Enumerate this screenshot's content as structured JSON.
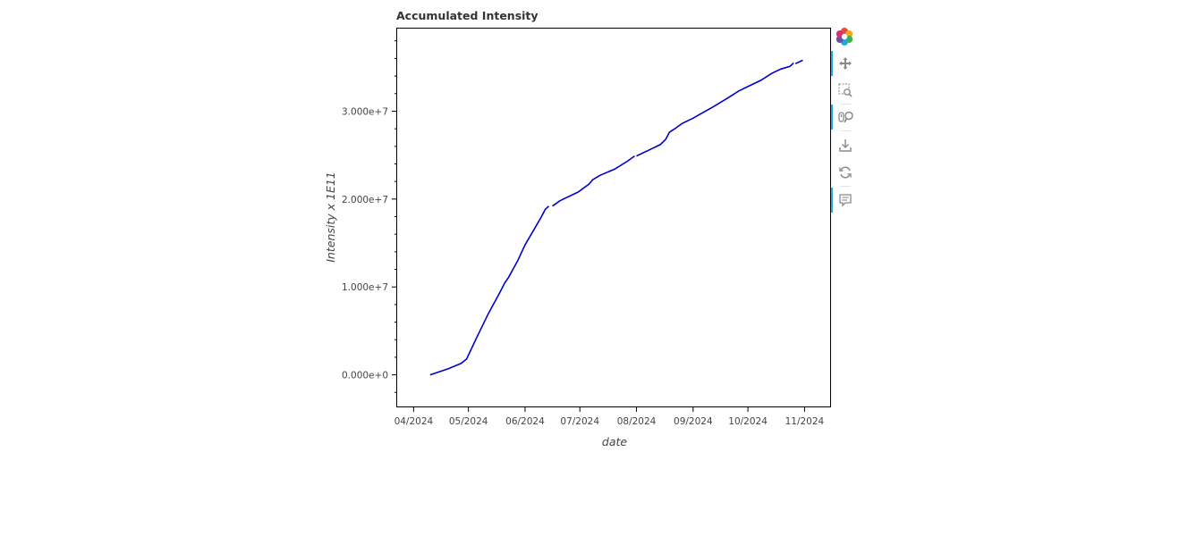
{
  "chart_data": {
    "type": "line",
    "title": "Accumulated Intensity",
    "xlabel": "date",
    "ylabel": "Intensity x 1E11",
    "x_ticks": [
      "04/2024",
      "05/2024",
      "06/2024",
      "07/2024",
      "08/2024",
      "09/2024",
      "10/2024",
      "11/2024"
    ],
    "x_tick_dates": [
      "2024-04-01",
      "2024-05-01",
      "2024-06-01",
      "2024-07-01",
      "2024-08-01",
      "2024-09-01",
      "2024-10-01",
      "2024-11-01"
    ],
    "xlim": [
      "2024-03-23",
      "2024-11-15"
    ],
    "y_ticks": [
      0,
      10000000,
      20000000,
      30000000
    ],
    "y_tick_labels": [
      "0.000e+0",
      "1.000e+7",
      "2.000e+7",
      "3.000e+7"
    ],
    "ylim": [
      -3600000,
      39400000
    ],
    "grid": false,
    "series": [
      {
        "color": "#0000cd",
        "segments": [
          [
            [
              "2024-04-10",
              0
            ],
            [
              "2024-04-20",
              700000
            ],
            [
              "2024-04-27",
              1300000
            ],
            [
              "2024-04-30",
              1800000
            ],
            [
              "2024-05-05",
              4000000
            ],
            [
              "2024-05-12",
              7000000
            ],
            [
              "2024-05-18",
              9300000
            ],
            [
              "2024-05-21",
              10500000
            ],
            [
              "2024-05-23",
              11100000
            ],
            [
              "2024-05-28",
              13000000
            ],
            [
              "2024-06-01",
              14800000
            ],
            [
              "2024-06-05",
              16200000
            ],
            [
              "2024-06-10",
              18000000
            ],
            [
              "2024-06-12",
              18800000
            ],
            [
              "2024-06-14",
              19200000
            ]
          ],
          [
            [
              "2024-06-16",
              19200000
            ],
            [
              "2024-06-20",
              19800000
            ],
            [
              "2024-06-30",
              20800000
            ],
            [
              "2024-07-06",
              21700000
            ],
            [
              "2024-07-08",
              22200000
            ],
            [
              "2024-07-12",
              22700000
            ],
            [
              "2024-07-20",
              23400000
            ],
            [
              "2024-07-27",
              24300000
            ],
            [
              "2024-07-31",
              24900000
            ]
          ],
          [
            [
              "2024-08-01",
              24900000
            ],
            [
              "2024-08-08",
              25600000
            ],
            [
              "2024-08-14",
              26200000
            ],
            [
              "2024-08-17",
              26800000
            ],
            [
              "2024-08-19",
              27600000
            ],
            [
              "2024-08-22",
              28000000
            ],
            [
              "2024-08-26",
              28600000
            ],
            [
              "2024-09-01",
              29200000
            ],
            [
              "2024-09-06",
              29800000
            ],
            [
              "2024-09-12",
              30500000
            ],
            [
              "2024-09-20",
              31500000
            ],
            [
              "2024-09-26",
              32300000
            ],
            [
              "2024-10-02",
              32900000
            ],
            [
              "2024-10-08",
              33500000
            ],
            [
              "2024-10-14",
              34300000
            ],
            [
              "2024-10-19",
              34800000
            ],
            [
              "2024-10-24",
              35100000
            ],
            [
              "2024-10-26",
              35500000
            ]
          ],
          [
            [
              "2024-10-27",
              35400000
            ],
            [
              "2024-10-29",
              35600000
            ],
            [
              "2024-10-31",
              35800000
            ]
          ]
        ]
      }
    ]
  },
  "toolbar": {
    "tools": [
      {
        "name": "bokeh-logo-icon",
        "active": false
      },
      {
        "name": "pan-tool-icon",
        "active": true
      },
      {
        "name": "box-zoom-tool-icon",
        "active": false
      },
      {
        "name": "wheel-zoom-tool-icon",
        "active": true
      },
      {
        "name": "save-tool-icon",
        "active": false
      },
      {
        "name": "reset-tool-icon",
        "active": false
      },
      {
        "name": "hover-tool-icon",
        "active": true
      }
    ]
  }
}
